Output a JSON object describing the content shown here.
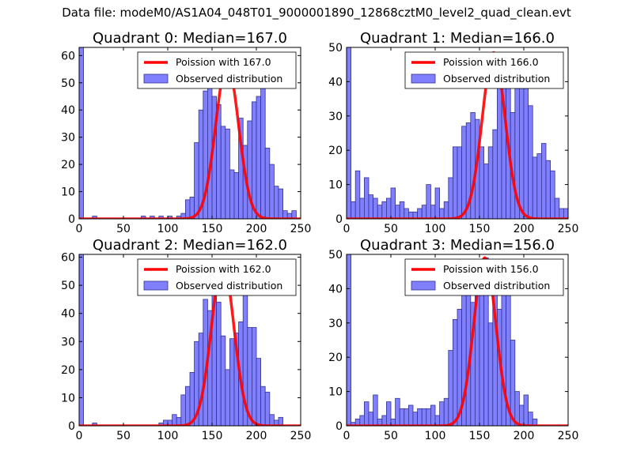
{
  "figure": {
    "suptitle": "Data file: modeM0/AS1A04_048T01_9000001890_12868cztM0_level2_quad_clean.evt"
  },
  "colors": {
    "bar_fill": "#8080ff",
    "bar_edge": "#33338f",
    "line": "#ff0000"
  },
  "chart_data": [
    {
      "type": "bar",
      "title": "Quadrant 0: Median=167.0",
      "xlim": [
        0,
        250
      ],
      "ylim": [
        0,
        63
      ],
      "xticks": [
        "0",
        "50",
        "100",
        "150",
        "200",
        "250"
      ],
      "yticks": [
        "0",
        "10",
        "20",
        "30",
        "40",
        "50",
        "60"
      ],
      "ytick_values": [
        0,
        10,
        20,
        30,
        40,
        50,
        60
      ],
      "bin_width": 5,
      "bin_starts": [
        0,
        5,
        10,
        15,
        20,
        25,
        30,
        35,
        40,
        45,
        50,
        55,
        60,
        65,
        70,
        75,
        80,
        85,
        90,
        95,
        100,
        105,
        110,
        115,
        120,
        125,
        130,
        135,
        140,
        145,
        150,
        155,
        160,
        165,
        170,
        175,
        180,
        185,
        190,
        195,
        200,
        205,
        210,
        215,
        220,
        225,
        230,
        235,
        240,
        245
      ],
      "values": [
        63,
        0,
        0,
        1,
        0,
        0,
        0,
        0,
        0,
        0,
        0,
        0,
        0,
        0,
        1,
        0,
        1,
        0,
        1,
        0,
        1,
        0,
        1,
        2,
        7,
        8,
        28,
        40,
        47,
        57,
        45,
        42,
        34,
        33,
        18,
        17,
        37,
        27,
        36,
        43,
        45,
        50,
        26,
        20,
        12,
        11,
        3,
        2,
        3,
        0
      ],
      "legend": [
        "Poission with 167.0",
        "Observed distribution"
      ],
      "poisson_mean": 167.0,
      "poisson_peak": 57
    },
    {
      "type": "bar",
      "title": "Quadrant 1: Median=166.0",
      "xlim": [
        0,
        250
      ],
      "ylim": [
        0,
        50
      ],
      "xticks": [
        "0",
        "50",
        "100",
        "150",
        "200",
        "250"
      ],
      "yticks": [
        "0",
        "10",
        "20",
        "30",
        "40",
        "50"
      ],
      "ytick_values": [
        0,
        10,
        20,
        30,
        40,
        50
      ],
      "bin_width": 5,
      "bin_starts": [
        0,
        5,
        10,
        15,
        20,
        25,
        30,
        35,
        40,
        45,
        50,
        55,
        60,
        65,
        70,
        75,
        80,
        85,
        90,
        95,
        100,
        105,
        110,
        115,
        120,
        125,
        130,
        135,
        140,
        145,
        150,
        155,
        160,
        165,
        170,
        175,
        180,
        185,
        190,
        195,
        200,
        205,
        210,
        215,
        220,
        225,
        230,
        235,
        240,
        245
      ],
      "values": [
        50,
        5,
        14,
        6,
        12,
        7,
        6,
        4,
        5,
        6,
        9,
        4,
        5,
        3,
        2,
        2,
        3,
        4,
        10,
        4,
        9,
        3,
        5,
        12,
        21,
        21,
        27,
        28,
        31,
        29,
        21,
        16,
        21,
        26,
        39,
        44,
        45,
        31,
        38,
        40,
        38,
        33,
        18,
        19,
        22,
        17,
        14,
        6,
        3,
        3
      ],
      "legend": [
        "Poission with 166.0",
        "Observed distribution"
      ],
      "poisson_mean": 166.0,
      "poisson_peak": 48.5
    },
    {
      "type": "bar",
      "title": "Quadrant 2: Median=162.0",
      "xlim": [
        0,
        250
      ],
      "ylim": [
        0,
        61
      ],
      "xticks": [
        "0",
        "50",
        "100",
        "150",
        "200",
        "250"
      ],
      "yticks": [
        "0",
        "10",
        "20",
        "30",
        "40",
        "50",
        "60"
      ],
      "ytick_values": [
        0,
        10,
        20,
        30,
        40,
        50,
        60
      ],
      "bin_width": 5,
      "bin_starts": [
        0,
        5,
        10,
        15,
        20,
        25,
        30,
        35,
        40,
        45,
        50,
        55,
        60,
        65,
        70,
        75,
        80,
        85,
        90,
        95,
        100,
        105,
        110,
        115,
        120,
        125,
        130,
        135,
        140,
        145,
        150,
        155,
        160,
        165,
        170,
        175,
        180,
        185,
        190,
        195,
        200,
        205,
        210,
        215,
        220,
        225,
        230,
        235,
        240,
        245
      ],
      "values": [
        61,
        0,
        0,
        1,
        0,
        0,
        0,
        0,
        0,
        0,
        0,
        0,
        0,
        0,
        0,
        0,
        0,
        0,
        1,
        2,
        2,
        4,
        3,
        11,
        14,
        19,
        30,
        33,
        45,
        41,
        59,
        44,
        32,
        20,
        31,
        33,
        37,
        50,
        35,
        35,
        24,
        14,
        12,
        4,
        2,
        3,
        0,
        0,
        0,
        0
      ],
      "legend": [
        "Poission with 162.0",
        "Observed distribution"
      ],
      "poisson_mean": 162.0,
      "poisson_peak": 58
    },
    {
      "type": "bar",
      "title": "Quadrant 3: Median=156.0",
      "xlim": [
        0,
        250
      ],
      "ylim": [
        0,
        50
      ],
      "xticks": [
        "0",
        "50",
        "100",
        "150",
        "200",
        "250"
      ],
      "yticks": [
        "0",
        "10",
        "20",
        "30",
        "40",
        "50"
      ],
      "ytick_values": [
        0,
        10,
        20,
        30,
        40,
        50
      ],
      "bin_width": 5,
      "bin_starts": [
        0,
        5,
        10,
        15,
        20,
        25,
        30,
        35,
        40,
        45,
        50,
        55,
        60,
        65,
        70,
        75,
        80,
        85,
        90,
        95,
        100,
        105,
        110,
        115,
        120,
        125,
        130,
        135,
        140,
        145,
        150,
        155,
        160,
        165,
        170,
        175,
        180,
        185,
        190,
        195,
        200,
        205,
        210,
        215,
        220,
        225,
        230,
        235,
        240,
        245
      ],
      "values": [
        50,
        1,
        2,
        3,
        7,
        4,
        9,
        2,
        3,
        7,
        2,
        8,
        5,
        5,
        6,
        4,
        5,
        5,
        5,
        6,
        3,
        7,
        8,
        22,
        31,
        34,
        40,
        45,
        36,
        44,
        43,
        49,
        30,
        45,
        34,
        46,
        41,
        25,
        10,
        6,
        9,
        4,
        2,
        0,
        0,
        0,
        0,
        0,
        0,
        0
      ],
      "legend": [
        "Poission with 156.0",
        "Observed distribution"
      ],
      "poisson_mean": 156.0,
      "poisson_peak": 49
    }
  ]
}
